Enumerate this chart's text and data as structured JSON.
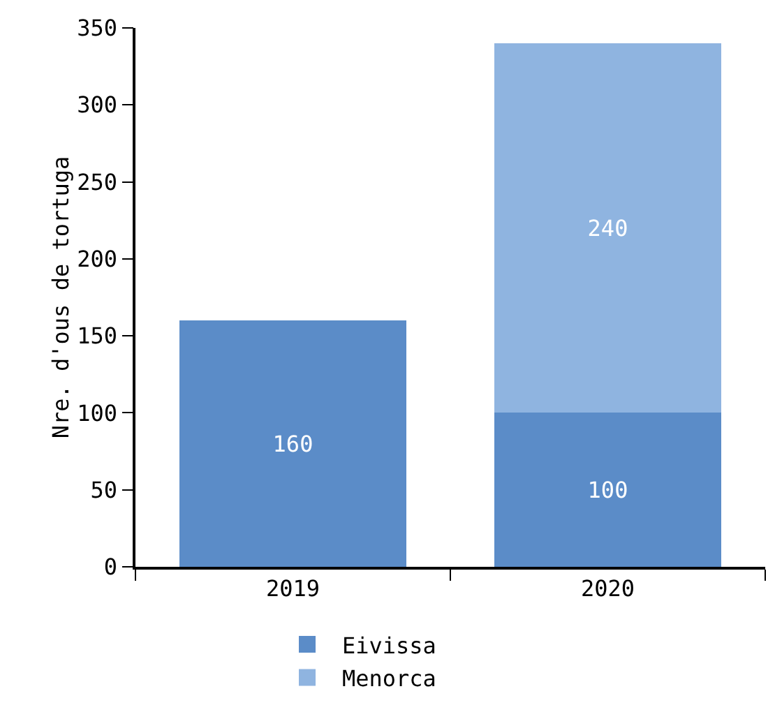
{
  "chart_data": {
    "type": "bar",
    "stacked": true,
    "categories": [
      "2019",
      "2020"
    ],
    "series": [
      {
        "name": "Eivissa",
        "color": "#5b8cc8",
        "values": [
          160,
          100
        ]
      },
      {
        "name": "Menorca",
        "color": "#8fb4e0",
        "values": [
          null,
          240
        ]
      }
    ],
    "ylabel": "Nre. d'ous de tortuga",
    "ylim": [
      0,
      350
    ],
    "yticks": [
      0,
      50,
      100,
      150,
      200,
      250,
      300,
      350
    ],
    "data_labels": true,
    "grid": false,
    "legend": "bottom"
  }
}
